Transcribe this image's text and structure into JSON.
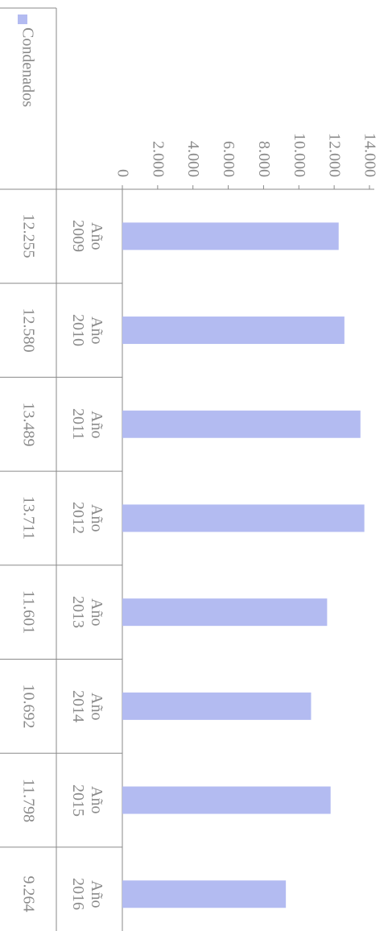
{
  "chart_data": {
    "type": "bar",
    "orientation": "horizontal",
    "categories": [
      "Año 2009",
      "Año 2010",
      "Año 2011",
      "Año 2012",
      "Año 2013",
      "Año 2014",
      "Año 2015",
      "Año 2016"
    ],
    "series": [
      {
        "name": "Condenados",
        "color": "#b3bbf1",
        "values": [
          12255,
          12580,
          13489,
          13711,
          11601,
          10692,
          11798,
          9264
        ],
        "value_labels": [
          "12.255",
          "12.580",
          "13.489",
          "13.711",
          "11.601",
          "10.692",
          "11.798",
          "9.264"
        ]
      }
    ],
    "xlim": [
      0,
      14000
    ],
    "xticks": [
      0,
      {
        "value": 2000,
        "label": "2.000"
      },
      {
        "value": 4000,
        "label": "4.000"
      },
      {
        "value": 6000,
        "label": "6.000"
      },
      {
        "value": 8000,
        "label": "8.000"
      },
      {
        "value": 10000,
        "label": "10.000"
      },
      {
        "value": 12000,
        "label": "12.000"
      },
      {
        "value": 14000,
        "label": "14.000"
      }
    ],
    "grid": false,
    "legend": "top-left"
  }
}
